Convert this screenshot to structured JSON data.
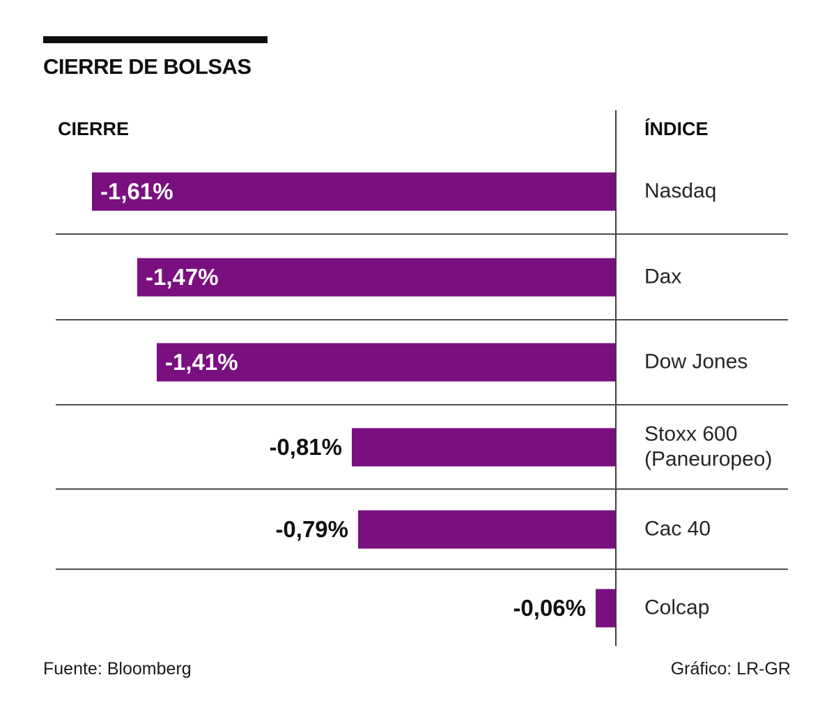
{
  "title": "CIERRE DE BOLSAS",
  "table": {
    "close_header": "CIERRE",
    "index_header": "ÍNDICE"
  },
  "footer": {
    "source": "Fuente: Bloomberg",
    "credit": "Gráfico: LR-GR"
  },
  "chart_data": {
    "type": "bar",
    "orientation": "horizontal",
    "title": "CIERRE DE BOLSAS",
    "categories": [
      "Nasdaq",
      "Dax",
      "Dow Jones",
      "Stoxx 600 (Paneuropeo)",
      "Cac 40",
      "Colcap"
    ],
    "values": [
      -1.61,
      -1.47,
      -1.41,
      -0.81,
      -0.79,
      -0.06
    ],
    "value_labels": [
      "-1,61%",
      "-1,47%",
      "-1,41%",
      "-0,81%",
      "-0,79%",
      "-0,06%"
    ],
    "value_axis_label": "CIERRE",
    "category_axis_label": "ÍNDICE",
    "xlim": [
      -1.61,
      0
    ],
    "bar_color": "#7a0f80",
    "grid": "row-separators",
    "legend": "none",
    "source": "Fuente: Bloomberg",
    "credit": "Gráfico: LR-GR"
  }
}
